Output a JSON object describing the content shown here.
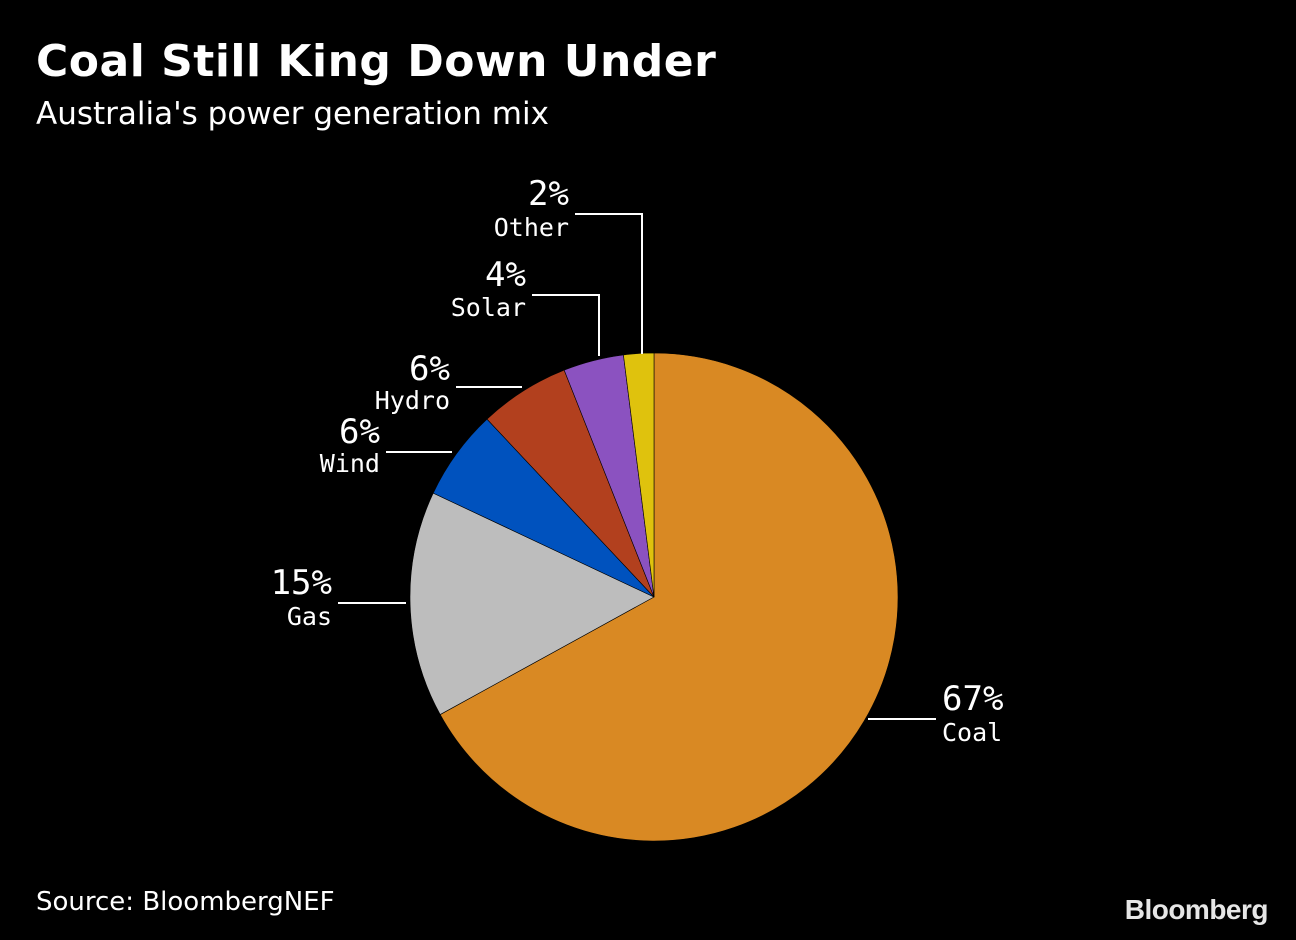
{
  "header": {
    "title": "Coal Still King Down Under",
    "subtitle": "Australia's power generation mix"
  },
  "footer": {
    "source": "Source: BloombergNEF",
    "brand": "Bloomberg"
  },
  "chart_data": {
    "type": "pie",
    "title": "Coal Still King Down Under",
    "subtitle": "Australia's power generation mix",
    "slices": [
      {
        "label": "Coal",
        "value": 67,
        "value_label": "67%",
        "color": "#d98923"
      },
      {
        "label": "Gas",
        "value": 15,
        "value_label": "15%",
        "color": "#bdbdbd"
      },
      {
        "label": "Wind",
        "value": 6,
        "value_label": "6%",
        "color": "#0052be"
      },
      {
        "label": "Hydro",
        "value": 6,
        "value_label": "6%",
        "color": "#b2401e"
      },
      {
        "label": "Solar",
        "value": 4,
        "value_label": "4%",
        "color": "#8b52c0"
      },
      {
        "label": "Other",
        "value": 2,
        "value_label": "2%",
        "color": "#dfc20d"
      }
    ],
    "start": "12 o'clock",
    "direction": "clockwise",
    "background": "#000000",
    "leader_line_color": "#ffffff"
  }
}
